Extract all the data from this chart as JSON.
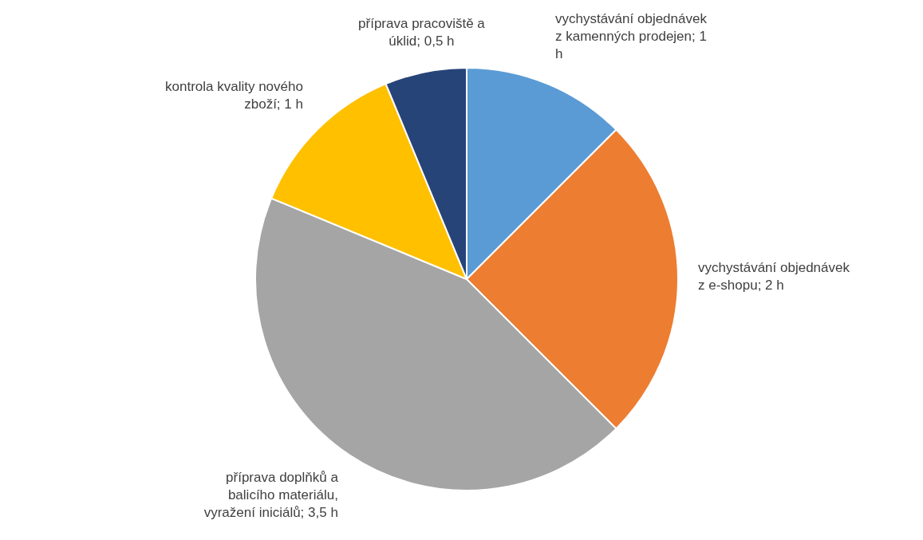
{
  "chart_data": {
    "type": "pie",
    "categories": [
      "vychystávání objednávek z kamenných prodejen",
      "vychystávání objednávek z e-shopu",
      "příprava doplňků a balicího materiálu, vyražení iniciálů",
      "kontrola kvality nového zboží",
      "příprava pracoviště a úklid"
    ],
    "values": [
      1,
      2,
      3.5,
      1,
      0.5
    ],
    "value_labels": [
      "1 h",
      "2 h",
      "3,5 h",
      "1 h",
      "0,5 h"
    ],
    "colors": [
      "#5b9bd5",
      "#ed7d31",
      "#a5a5a5",
      "#ffc000",
      "#264478"
    ]
  }
}
